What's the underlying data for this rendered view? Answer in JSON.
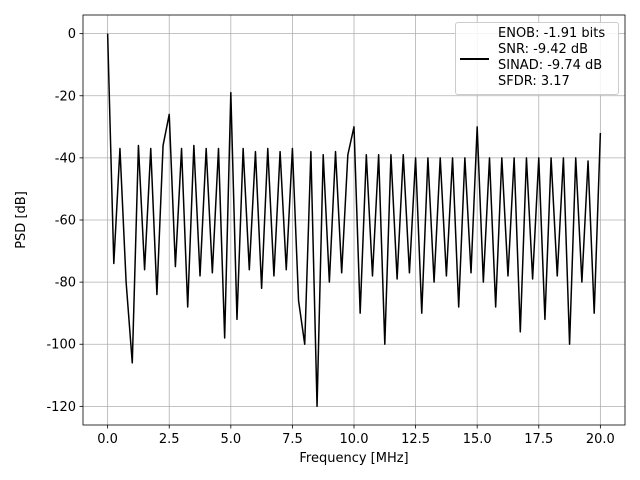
{
  "chart_data": {
    "type": "line",
    "x_label": "Frequency [MHz]",
    "y_label": "PSD [dB]",
    "x": [
      0,
      0.25,
      0.5,
      0.75,
      1,
      1.25,
      1.5,
      1.75,
      2,
      2.25,
      2.5,
      2.75,
      3,
      3.25,
      3.5,
      3.75,
      4,
      4.25,
      4.5,
      4.75,
      5,
      5.25,
      5.5,
      5.75,
      6,
      6.25,
      6.5,
      6.75,
      7,
      7.25,
      7.5,
      7.75,
      8,
      8.25,
      8.5,
      8.75,
      9,
      9.25,
      9.5,
      9.75,
      10,
      10.25,
      10.5,
      10.75,
      11,
      11.25,
      11.5,
      11.75,
      12,
      12.25,
      12.5,
      12.75,
      13,
      13.25,
      13.5,
      13.75,
      14,
      14.25,
      14.5,
      14.75,
      15,
      15.25,
      15.5,
      15.75,
      16,
      16.25,
      16.5,
      16.75,
      17,
      17.25,
      17.5,
      17.75,
      18,
      18.25,
      18.5,
      18.75,
      19,
      19.25,
      19.5,
      19.75,
      20
    ],
    "series": [
      {
        "name": "ENOB: -1.91 bits\nSNR: -9.42 dB\nSINAD: -9.74 dB\nSFDR: 3.17",
        "color": "#000000",
        "values": [
          0,
          -74,
          -37,
          -80,
          -106,
          -36,
          -76,
          -37,
          -84,
          -36,
          -26,
          -75,
          -37,
          -88,
          -36,
          -78,
          -37,
          -77,
          -37,
          -98,
          -19,
          -92,
          -37,
          -76,
          -38,
          -82,
          -37,
          -78,
          -38,
          -76,
          -37,
          -86,
          -100,
          -38,
          -120,
          -39,
          -80,
          -38,
          -77,
          -39,
          -30,
          -90,
          -39,
          -78,
          -39,
          -100,
          -39,
          -79,
          -39,
          -77,
          -40,
          -90,
          -40,
          -80,
          -40,
          -78,
          -40,
          -88,
          -40,
          -77,
          -30,
          -80,
          -40,
          -88,
          -40,
          -78,
          -40,
          -96,
          -40,
          -79,
          -40,
          -92,
          -40,
          -78,
          -40,
          -100,
          -40,
          -80,
          -41,
          -90,
          -32
        ]
      }
    ],
    "xlim": [
      -1,
      21
    ],
    "ylim": [
      -126,
      6
    ],
    "xticks": [
      {
        "value": 0,
        "label": "0.0"
      },
      2.5,
      {
        "value": 5,
        "label": "5.0"
      },
      7.5,
      {
        "value": 10,
        "label": "10.0"
      },
      12.5,
      {
        "value": 15,
        "label": "15.0"
      },
      17.5,
      {
        "value": 20,
        "label": "20.0"
      }
    ],
    "yticks": [
      0,
      -20,
      -40,
      -60,
      -80,
      -100,
      -120
    ],
    "grid": true
  }
}
